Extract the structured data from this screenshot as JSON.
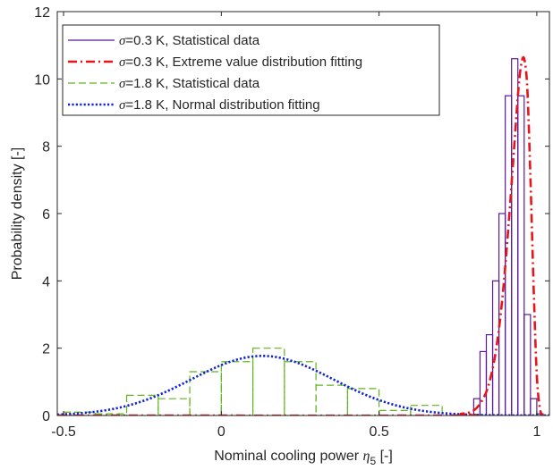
{
  "chart_data": {
    "type": "histogram+line",
    "xlabel_main": "Nominal cooling power ",
    "xlabel_sym": "η",
    "xlabel_sub": "5",
    "xlabel_unit": " [-]",
    "ylabel": "Probability density [-]",
    "xlim": [
      -0.52,
      1.04
    ],
    "ylim": [
      0,
      12
    ],
    "xticks": [
      -0.5,
      0,
      0.5,
      1
    ],
    "xtick_labels": [
      "-0.5",
      "0",
      "0.5",
      "1"
    ],
    "yticks": [
      0,
      2,
      4,
      6,
      8,
      10,
      12
    ],
    "ytick_labels": [
      "0",
      "2",
      "4",
      "6",
      "8",
      "10",
      "12"
    ],
    "grid": false,
    "legend_position": "top-left",
    "legend": [
      {
        "sym": "σ",
        "text": "=0.3 K, Statistical data",
        "color": "#5a189a",
        "style": "solid"
      },
      {
        "sym": "σ",
        "text": "=0.3 K, Extreme value distribution fitting",
        "color": "#e8141b",
        "style": "dashdot"
      },
      {
        "sym": "σ",
        "text": "=1.8 K, Statistical data",
        "color": "#5fb51d",
        "style": "dashed"
      },
      {
        "sym": "σ",
        "text": "=1.8 K, Normal distribution fitting",
        "color": "#1022d6",
        "style": "dotted"
      }
    ],
    "series": [
      {
        "kind": "histogram",
        "bin_edges": [
          0.8,
          0.82,
          0.84,
          0.86,
          0.88,
          0.9,
          0.92,
          0.94,
          0.96,
          0.98,
          1.0,
          1.02
        ],
        "values": [
          0.5,
          1.9,
          2.4,
          4.0,
          6.0,
          9.5,
          10.6,
          9.5,
          3.0,
          0.5,
          0.05
        ]
      },
      {
        "kind": "curve",
        "distribution": "extreme-value",
        "x": [
          0.7,
          0.76,
          0.8,
          0.83,
          0.85,
          0.87,
          0.89,
          0.91,
          0.93,
          0.94,
          0.95,
          0.96,
          0.97,
          0.98,
          0.99,
          1.0,
          1.01,
          1.02
        ],
        "y": [
          0.0,
          0.05,
          0.15,
          0.5,
          1.0,
          1.9,
          3.4,
          5.6,
          8.2,
          9.5,
          10.4,
          10.6,
          9.7,
          7.0,
          3.8,
          1.2,
          0.2,
          0.0
        ]
      },
      {
        "kind": "histogram",
        "bin_edges": [
          -0.5,
          -0.4,
          -0.3,
          -0.2,
          -0.1,
          0.0,
          0.1,
          0.2,
          0.3,
          0.4,
          0.5,
          0.6,
          0.7
        ],
        "values": [
          0.1,
          0.05,
          0.6,
          0.5,
          1.3,
          1.6,
          2.0,
          1.6,
          0.9,
          0.8,
          0.15,
          0.3
        ]
      },
      {
        "kind": "curve",
        "distribution": "normal",
        "mean": 0.13,
        "sd": 0.225,
        "peak": 1.77,
        "x_range": [
          -0.52,
          1.04
        ]
      }
    ]
  }
}
